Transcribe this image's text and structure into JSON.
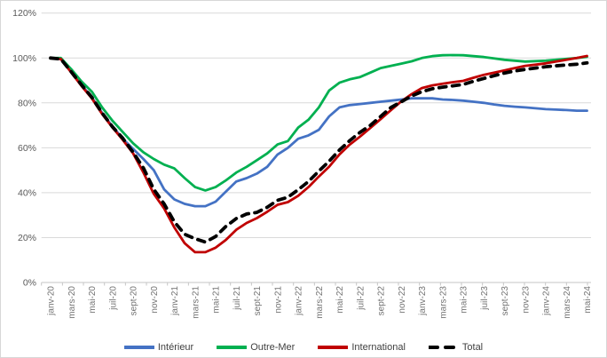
{
  "chart_data": {
    "type": "line",
    "title": "",
    "xlabel": "",
    "ylabel": "",
    "y_axis": {
      "min": 0,
      "max": 120,
      "step": 20,
      "tick_labels": [
        "0%",
        "20%",
        "40%",
        "60%",
        "80%",
        "100%",
        "120%"
      ],
      "unit": "%"
    },
    "x_tick_labels": [
      "janv-20",
      "mars-20",
      "mai-20",
      "juil-20",
      "sept-20",
      "nov-20",
      "janv-21",
      "mars-21",
      "mai-21",
      "juil-21",
      "sept-21",
      "nov-21",
      "janv-22",
      "mars-22",
      "mai-22",
      "juil-22",
      "sept-22",
      "nov-22",
      "janv-23",
      "mars-23",
      "mai-23",
      "juil-23",
      "sept-23",
      "nov-23",
      "janv-24",
      "mars-24",
      "mai-24"
    ],
    "x_resolution": "monthly, tick label shown every 2 months",
    "grid": "horizontal",
    "legend_position": "bottom",
    "series": [
      {
        "name": "Intérieur",
        "color": "#4472C4",
        "dashed": false,
        "values": [
          100,
          99.5,
          94,
          88,
          82.5,
          75.5,
          69.5,
          64,
          59.5,
          55,
          50,
          41.5,
          37,
          35,
          34,
          34,
          36,
          40.5,
          45,
          46.5,
          48.5,
          51.5,
          57,
          60,
          64,
          65.5,
          68,
          74,
          78,
          79,
          79.5,
          80,
          80.5,
          81,
          81.5,
          82,
          82,
          82,
          81.5,
          81.3,
          81,
          80.5,
          80,
          79.3,
          78.7,
          78.3,
          78,
          77.6,
          77.2,
          77,
          76.8,
          76.5,
          76.5
        ]
      },
      {
        "name": "Outre-Mer",
        "color": "#00B050",
        "dashed": false,
        "values": [
          100,
          100,
          95,
          89.5,
          85,
          78,
          72,
          67,
          62,
          58,
          55,
          52.5,
          50.8,
          46.5,
          42.5,
          41,
          42.5,
          45.5,
          49,
          51.5,
          54.5,
          57.5,
          61.5,
          63,
          69,
          72.5,
          78,
          85.5,
          89,
          90.5,
          91.5,
          93.5,
          95.5,
          96.5,
          97.5,
          98.5,
          100,
          100.8,
          101.2,
          101.3,
          101.2,
          100.8,
          100.4,
          99.8,
          99.2,
          98.8,
          98.4,
          98.6,
          98.8,
          99.2,
          99.6,
          100,
          100.5
        ]
      },
      {
        "name": "International",
        "color": "#C00000",
        "dashed": false,
        "values": [
          100,
          99.5,
          93.5,
          87.5,
          82,
          75,
          69,
          63.5,
          57.5,
          49,
          39.5,
          33,
          24.5,
          17.5,
          13.5,
          13.5,
          15.5,
          19,
          23.5,
          26.5,
          28.7,
          31.5,
          34.6,
          35.8,
          38.6,
          42.5,
          47.2,
          51.6,
          57,
          61.4,
          65,
          68.9,
          72.8,
          76.8,
          80.7,
          83.9,
          86.6,
          87.8,
          88.5,
          89.2,
          89.8,
          91.2,
          92.5,
          93.5,
          94.5,
          95.5,
          96.5,
          97,
          97.6,
          98.4,
          99.2,
          100,
          100.9
        ]
      },
      {
        "name": "Total",
        "color": "#000000",
        "dashed": true,
        "values": [
          100,
          99.5,
          93.8,
          88,
          82.5,
          75.5,
          69.3,
          64.2,
          58,
          51,
          41.5,
          35,
          27,
          21.5,
          19.5,
          18,
          20.5,
          25,
          28.5,
          30.5,
          31.2,
          33.5,
          36.6,
          38,
          41.3,
          45,
          49.6,
          54,
          59,
          63.2,
          66.9,
          70,
          74,
          78,
          80.5,
          83.1,
          85,
          86.3,
          87,
          87.6,
          88.2,
          89.6,
          90.9,
          92.1,
          93.3,
          94.2,
          94.9,
          95.5,
          96.1,
          96.5,
          96.9,
          97.2,
          97.8
        ]
      }
    ],
    "colors": {
      "gridline": "#D9D9D9",
      "axis_line": "#C6C6C6",
      "axis_text": "#737373",
      "background": "#FFFFFF"
    }
  },
  "legend": {
    "items": [
      {
        "label": "Intérieur"
      },
      {
        "label": "Outre-Mer"
      },
      {
        "label": "International"
      },
      {
        "label": "Total"
      }
    ]
  }
}
